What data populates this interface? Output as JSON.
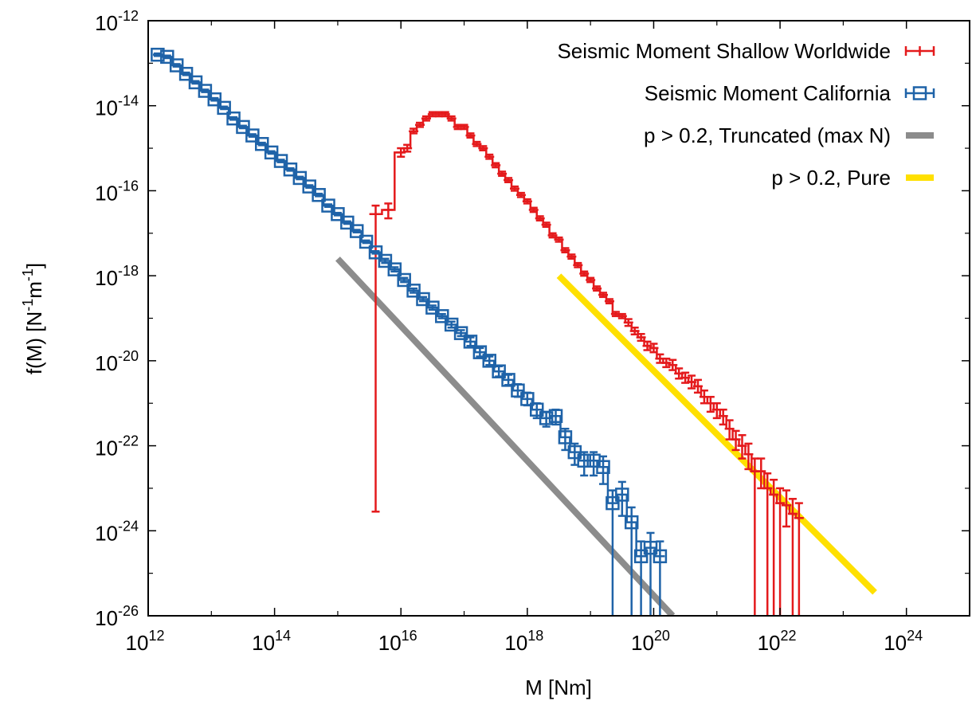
{
  "chart_data": {
    "type": "scatter",
    "x_scale": "log",
    "y_scale": "log",
    "xlabel": "M [Nm]",
    "ylabel": "f(M) [N-1m-1]",
    "ylabel_parts": {
      "a": "f(M) [N",
      "e1": "-1",
      "b": "m",
      "e2": "-1",
      "c": "]"
    },
    "xlim": [
      1000000000000.0,
      1e+25
    ],
    "ylim": [
      1e-26,
      1e-12
    ],
    "x_ticks": [
      {
        "base": "10",
        "exp": "12",
        "value": 1000000000000.0
      },
      {
        "base": "10",
        "exp": "14",
        "value": 100000000000000.0
      },
      {
        "base": "10",
        "exp": "16",
        "value": 1e+16
      },
      {
        "base": "10",
        "exp": "18",
        "value": 1e+18
      },
      {
        "base": "10",
        "exp": "20",
        "value": 1e+20
      },
      {
        "base": "10",
        "exp": "22",
        "value": 1e+22
      },
      {
        "base": "10",
        "exp": "24",
        "value": 1e+24
      }
    ],
    "y_ticks": [
      {
        "base": "10",
        "exp": "-12",
        "value": 1e-12
      },
      {
        "base": "10",
        "exp": "-14",
        "value": 1e-14
      },
      {
        "base": "10",
        "exp": "-16",
        "value": 1e-16
      },
      {
        "base": "10",
        "exp": "-18",
        "value": 1e-18
      },
      {
        "base": "10",
        "exp": "-20",
        "value": 1e-20
      },
      {
        "base": "10",
        "exp": "-22",
        "value": 1e-22
      },
      {
        "base": "10",
        "exp": "-24",
        "value": 1e-24
      },
      {
        "base": "10",
        "exp": "-26",
        "value": 1e-26
      }
    ],
    "legend_position": "top-right",
    "series": [
      {
        "name": "Seismic Moment Shallow Worldwide",
        "color": "#e41a1c",
        "style": "histogram-step-errorbars",
        "log10_x": [
          15.6,
          15.8,
          16.0,
          16.1,
          16.2,
          16.3,
          16.4,
          16.5,
          16.6,
          16.7,
          16.8,
          16.9,
          17.0,
          17.1,
          17.2,
          17.3,
          17.4,
          17.5,
          17.6,
          17.7,
          17.8,
          17.9,
          18.0,
          18.1,
          18.2,
          18.3,
          18.4,
          18.5,
          18.6,
          18.7,
          18.8,
          18.9,
          19.0,
          19.1,
          19.2,
          19.3,
          19.4,
          19.5,
          19.6,
          19.7,
          19.8,
          19.9,
          20.0,
          20.1,
          20.2,
          20.3,
          20.4,
          20.5,
          20.6,
          20.7,
          20.8,
          20.9,
          21.0,
          21.1,
          21.2,
          21.3,
          21.4,
          21.5,
          21.6,
          21.7,
          21.8,
          21.9,
          22.0,
          22.1,
          22.2,
          22.3
        ],
        "log10_y": [
          -16.55,
          -16.45,
          -15.1,
          -15.0,
          -14.6,
          -14.45,
          -14.3,
          -14.2,
          -14.2,
          -14.2,
          -14.3,
          -14.5,
          -14.5,
          -14.7,
          -14.9,
          -15.0,
          -15.2,
          -15.4,
          -15.6,
          -15.75,
          -15.95,
          -16.1,
          -16.25,
          -16.45,
          -16.65,
          -16.8,
          -17.05,
          -17.15,
          -17.4,
          -17.55,
          -17.75,
          -17.95,
          -18.1,
          -18.3,
          -18.45,
          -18.6,
          -18.9,
          -18.95,
          -19.1,
          -19.3,
          -19.45,
          -19.65,
          -19.7,
          -19.95,
          -20.05,
          -20.1,
          -20.3,
          -20.4,
          -20.5,
          -20.6,
          -20.85,
          -21.0,
          -21.15,
          -21.3,
          -21.6,
          -21.85,
          -22.0,
          -22.2,
          -22.6,
          -22.6,
          -23.0,
          -23.15,
          -23.35,
          -23.4,
          -23.6,
          -23.7
        ],
        "log10_yerr_lo": [
          7.0,
          0.2,
          0.1,
          0.08,
          0.05,
          0.05,
          0.05,
          0.05,
          0.05,
          0.05,
          0.05,
          0.05,
          0.05,
          0.05,
          0.05,
          0.05,
          0.05,
          0.05,
          0.05,
          0.05,
          0.05,
          0.05,
          0.05,
          0.05,
          0.05,
          0.05,
          0.05,
          0.05,
          0.05,
          0.05,
          0.05,
          0.05,
          0.05,
          0.05,
          0.05,
          0.05,
          0.05,
          0.05,
          0.08,
          0.08,
          0.08,
          0.1,
          0.1,
          0.1,
          0.1,
          0.12,
          0.12,
          0.12,
          0.15,
          0.15,
          0.15,
          0.2,
          0.2,
          0.2,
          0.25,
          0.25,
          0.3,
          0.35,
          4.0,
          0.4,
          4.0,
          4.0,
          4.0,
          0.5,
          4.0,
          4.0
        ],
        "log10_yerr_hi": [
          0.2,
          0.15,
          0.1,
          0.08,
          0.06,
          0.05,
          0.05,
          0.05,
          0.05,
          0.05,
          0.05,
          0.05,
          0.05,
          0.05,
          0.05,
          0.05,
          0.05,
          0.05,
          0.05,
          0.05,
          0.05,
          0.05,
          0.05,
          0.05,
          0.05,
          0.05,
          0.05,
          0.05,
          0.05,
          0.05,
          0.05,
          0.05,
          0.05,
          0.05,
          0.05,
          0.05,
          0.05,
          0.05,
          0.08,
          0.08,
          0.08,
          0.1,
          0.1,
          0.1,
          0.1,
          0.12,
          0.12,
          0.12,
          0.15,
          0.15,
          0.15,
          0.15,
          0.15,
          0.15,
          0.2,
          0.2,
          0.25,
          0.25,
          0.3,
          0.3,
          0.35,
          0.35,
          0.35,
          0.35,
          0.35,
          0.35
        ]
      },
      {
        "name": "Seismic Moment California",
        "color": "#1f63a8",
        "style": "histogram-step-squares",
        "log10_x": [
          12.15,
          12.3,
          12.45,
          12.6,
          12.75,
          12.9,
          13.05,
          13.2,
          13.35,
          13.5,
          13.65,
          13.8,
          13.95,
          14.1,
          14.25,
          14.4,
          14.55,
          14.7,
          14.85,
          15.0,
          15.15,
          15.3,
          15.45,
          15.6,
          15.75,
          15.9,
          16.05,
          16.2,
          16.35,
          16.5,
          16.65,
          16.8,
          16.95,
          17.1,
          17.25,
          17.4,
          17.55,
          17.7,
          17.85,
          18.0,
          18.15,
          18.3,
          18.45,
          18.6,
          18.75,
          18.9,
          19.05,
          19.2,
          19.35,
          19.5,
          19.65,
          19.8,
          19.95,
          20.1
        ],
        "log10_y": [
          -12.8,
          -12.85,
          -13.05,
          -13.25,
          -13.45,
          -13.65,
          -13.85,
          -14.05,
          -14.3,
          -14.5,
          -14.7,
          -14.9,
          -15.1,
          -15.3,
          -15.5,
          -15.7,
          -15.9,
          -16.1,
          -16.35,
          -16.55,
          -16.75,
          -16.95,
          -17.2,
          -17.45,
          -17.65,
          -17.85,
          -18.1,
          -18.35,
          -18.55,
          -18.75,
          -18.95,
          -19.15,
          -19.35,
          -19.55,
          -19.8,
          -20.0,
          -20.25,
          -20.45,
          -20.7,
          -20.9,
          -21.15,
          -21.35,
          -21.3,
          -21.8,
          -22.15,
          -22.35,
          -22.35,
          -22.5,
          -23.35,
          -23.15,
          -23.8,
          -24.6,
          -24.4,
          -24.6
        ],
        "log10_yerr_lo": [
          0.03,
          0.03,
          0.03,
          0.03,
          0.03,
          0.03,
          0.03,
          0.03,
          0.03,
          0.03,
          0.03,
          0.03,
          0.03,
          0.03,
          0.03,
          0.03,
          0.03,
          0.03,
          0.03,
          0.03,
          0.03,
          0.03,
          0.03,
          0.03,
          0.05,
          0.05,
          0.05,
          0.05,
          0.05,
          0.05,
          0.05,
          0.07,
          0.07,
          0.1,
          0.1,
          0.1,
          0.12,
          0.12,
          0.15,
          0.15,
          0.2,
          0.2,
          0.2,
          0.3,
          0.3,
          0.35,
          0.35,
          0.4,
          4.0,
          0.5,
          4.0,
          4.0,
          4.0,
          4.0
        ],
        "log10_yerr_hi": [
          0.03,
          0.03,
          0.03,
          0.03,
          0.03,
          0.03,
          0.03,
          0.03,
          0.03,
          0.03,
          0.03,
          0.03,
          0.03,
          0.03,
          0.03,
          0.03,
          0.03,
          0.03,
          0.03,
          0.03,
          0.03,
          0.03,
          0.03,
          0.03,
          0.05,
          0.05,
          0.05,
          0.05,
          0.05,
          0.05,
          0.05,
          0.07,
          0.07,
          0.1,
          0.1,
          0.1,
          0.12,
          0.12,
          0.15,
          0.15,
          0.15,
          0.15,
          0.15,
          0.2,
          0.2,
          0.2,
          0.2,
          0.25,
          0.3,
          0.3,
          0.35,
          0.35,
          0.35,
          0.35
        ]
      },
      {
        "name": "p > 0.2, Truncated (max N)",
        "color": "#8c8c8c",
        "style": "line",
        "log10_x": [
          15.0,
          20.3
        ],
        "log10_y": [
          -17.6,
          -26.0
        ]
      },
      {
        "name": "p > 0.2, Pure",
        "color": "#ffe000",
        "style": "line",
        "log10_x": [
          18.5,
          23.5
        ],
        "log10_y": [
          -18.0,
          -25.45
        ]
      }
    ]
  }
}
